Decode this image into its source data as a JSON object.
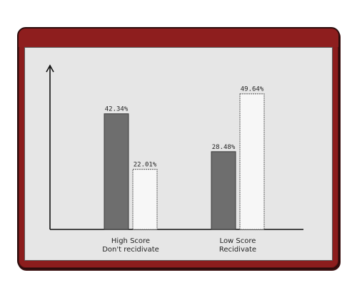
{
  "window": {
    "frame_color": "#8c1d1d",
    "content_bg": "#e6e6e6"
  },
  "chart_data": {
    "type": "bar",
    "categories": [
      [
        "High Score",
        "Don't recidivate"
      ],
      [
        "Low Score",
        "Recidivate"
      ]
    ],
    "series": [
      {
        "values": [
          42.34,
          28.48
        ],
        "color": "#6e6e6e"
      },
      {
        "values": [
          22.01,
          49.64
        ],
        "color": "#f7f7f7"
      }
    ],
    "data_labels": [
      [
        "42.34%",
        "28.48%"
      ],
      [
        "22.01%",
        "49.64%"
      ]
    ],
    "ylim": [
      0,
      60
    ],
    "grid": false,
    "legend": "none"
  }
}
